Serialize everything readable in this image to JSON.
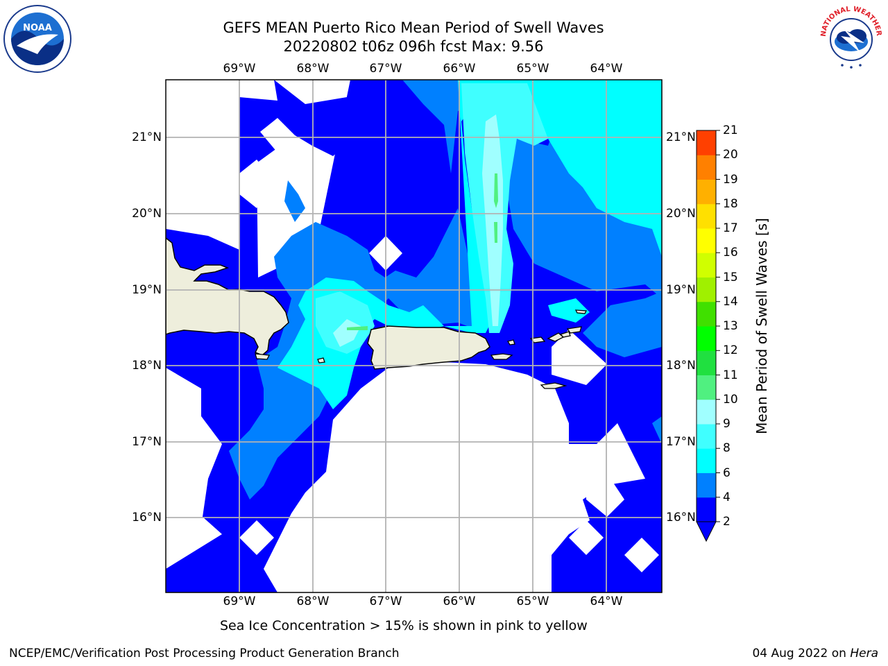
{
  "header": {
    "title_line1": "GEFS MEAN Puerto Rico Mean Period of Swell Waves",
    "title_line2": "20220802 t06z 096h fcst   Max: 9.56"
  },
  "logos": {
    "noaa_text": "NOAA",
    "nws_text": "NATIONAL WEATHER SERVICE"
  },
  "map": {
    "lon_labels": [
      "69°W",
      "68°W",
      "67°W",
      "66°W",
      "65°W",
      "64°W"
    ],
    "lat_labels": [
      "21°N",
      "20°N",
      "19°N",
      "18°N",
      "17°N",
      "16°N"
    ],
    "colors": {
      "land": "#eeeedc",
      "grid": "#b3b3b3",
      "frame": "#000000"
    }
  },
  "colorbar": {
    "label": "Mean Period of Swell Waves [s]",
    "ticks": [
      "2",
      "4",
      "6",
      "8",
      "9",
      "10",
      "11",
      "12",
      "13",
      "14",
      "15",
      "16",
      "17",
      "18",
      "19",
      "20",
      "21"
    ],
    "colors": [
      "#0000ff",
      "#0080ff",
      "#00ffff",
      "#40ffff",
      "#a0ffff",
      "#50f080",
      "#20e040",
      "#00ff00",
      "#40e000",
      "#a0f000",
      "#d0ff00",
      "#ffff00",
      "#ffe000",
      "#ffb000",
      "#ff8000",
      "#ff4000",
      "#ff0000"
    ],
    "extend_color": "#0000ff"
  },
  "footer": {
    "note": "Sea Ice Concentration > 15% is shown in pink to yellow",
    "credit_left": "NCEP/EMC/Verification Post Processing Product Generation Branch",
    "credit_date": "04 Aug 2022 on ",
    "credit_machine": "Hera"
  }
}
